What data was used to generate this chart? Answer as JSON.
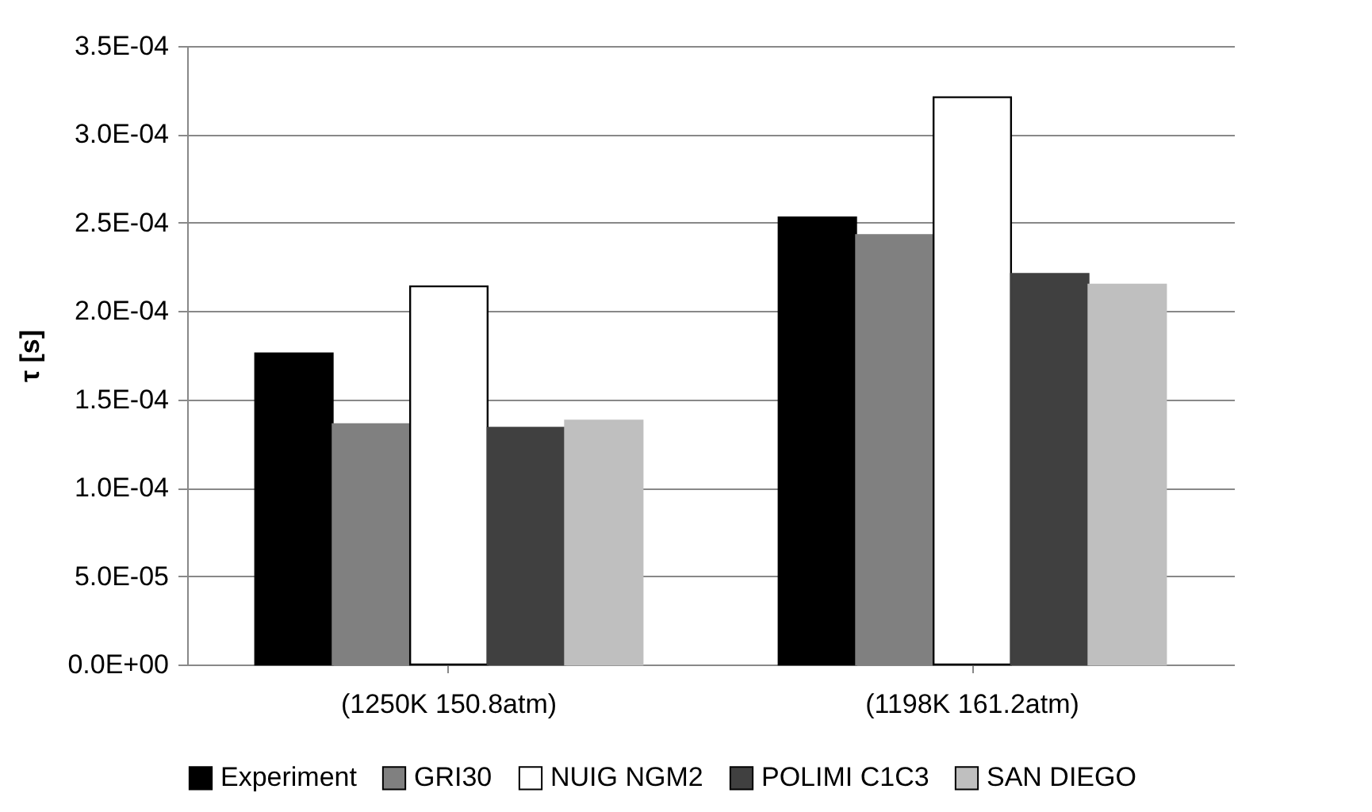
{
  "chart_data": {
    "type": "bar",
    "ylabel": "τ [s]",
    "categories": [
      "(1250K 150.8atm)",
      "(1198K 161.2atm)"
    ],
    "series": [
      {
        "name": "Experiment",
        "color": "#000000",
        "values": [
          0.000176,
          0.000253
        ]
      },
      {
        "name": "GRI30",
        "color": "#808080",
        "values": [
          0.000136,
          0.000243
        ]
      },
      {
        "name": "NUIG NGM2",
        "color": "#ffffff",
        "values": [
          0.000214,
          0.000321
        ]
      },
      {
        "name": "POLIMI C1C3",
        "color": "#404040",
        "values": [
          0.000134,
          0.000221
        ]
      },
      {
        "name": "SAN DIEGO",
        "color": "#bfbfbf",
        "values": [
          0.000138,
          0.000215
        ]
      }
    ],
    "ylim": [
      0,
      0.00035
    ],
    "yticks": [
      {
        "value": 0,
        "label": "0.0E+00"
      },
      {
        "value": 5e-05,
        "label": "5.0E-05"
      },
      {
        "value": 0.0001,
        "label": "1.0E-04"
      },
      {
        "value": 0.00015,
        "label": "1.5E-04"
      },
      {
        "value": 0.0002,
        "label": "2.0E-04"
      },
      {
        "value": 0.00025,
        "label": "2.5E-04"
      },
      {
        "value": 0.0003,
        "label": "3.0E-04"
      },
      {
        "value": 0.00035,
        "label": "3.5E-04"
      }
    ],
    "grid": "y",
    "legend": "bottom"
  }
}
